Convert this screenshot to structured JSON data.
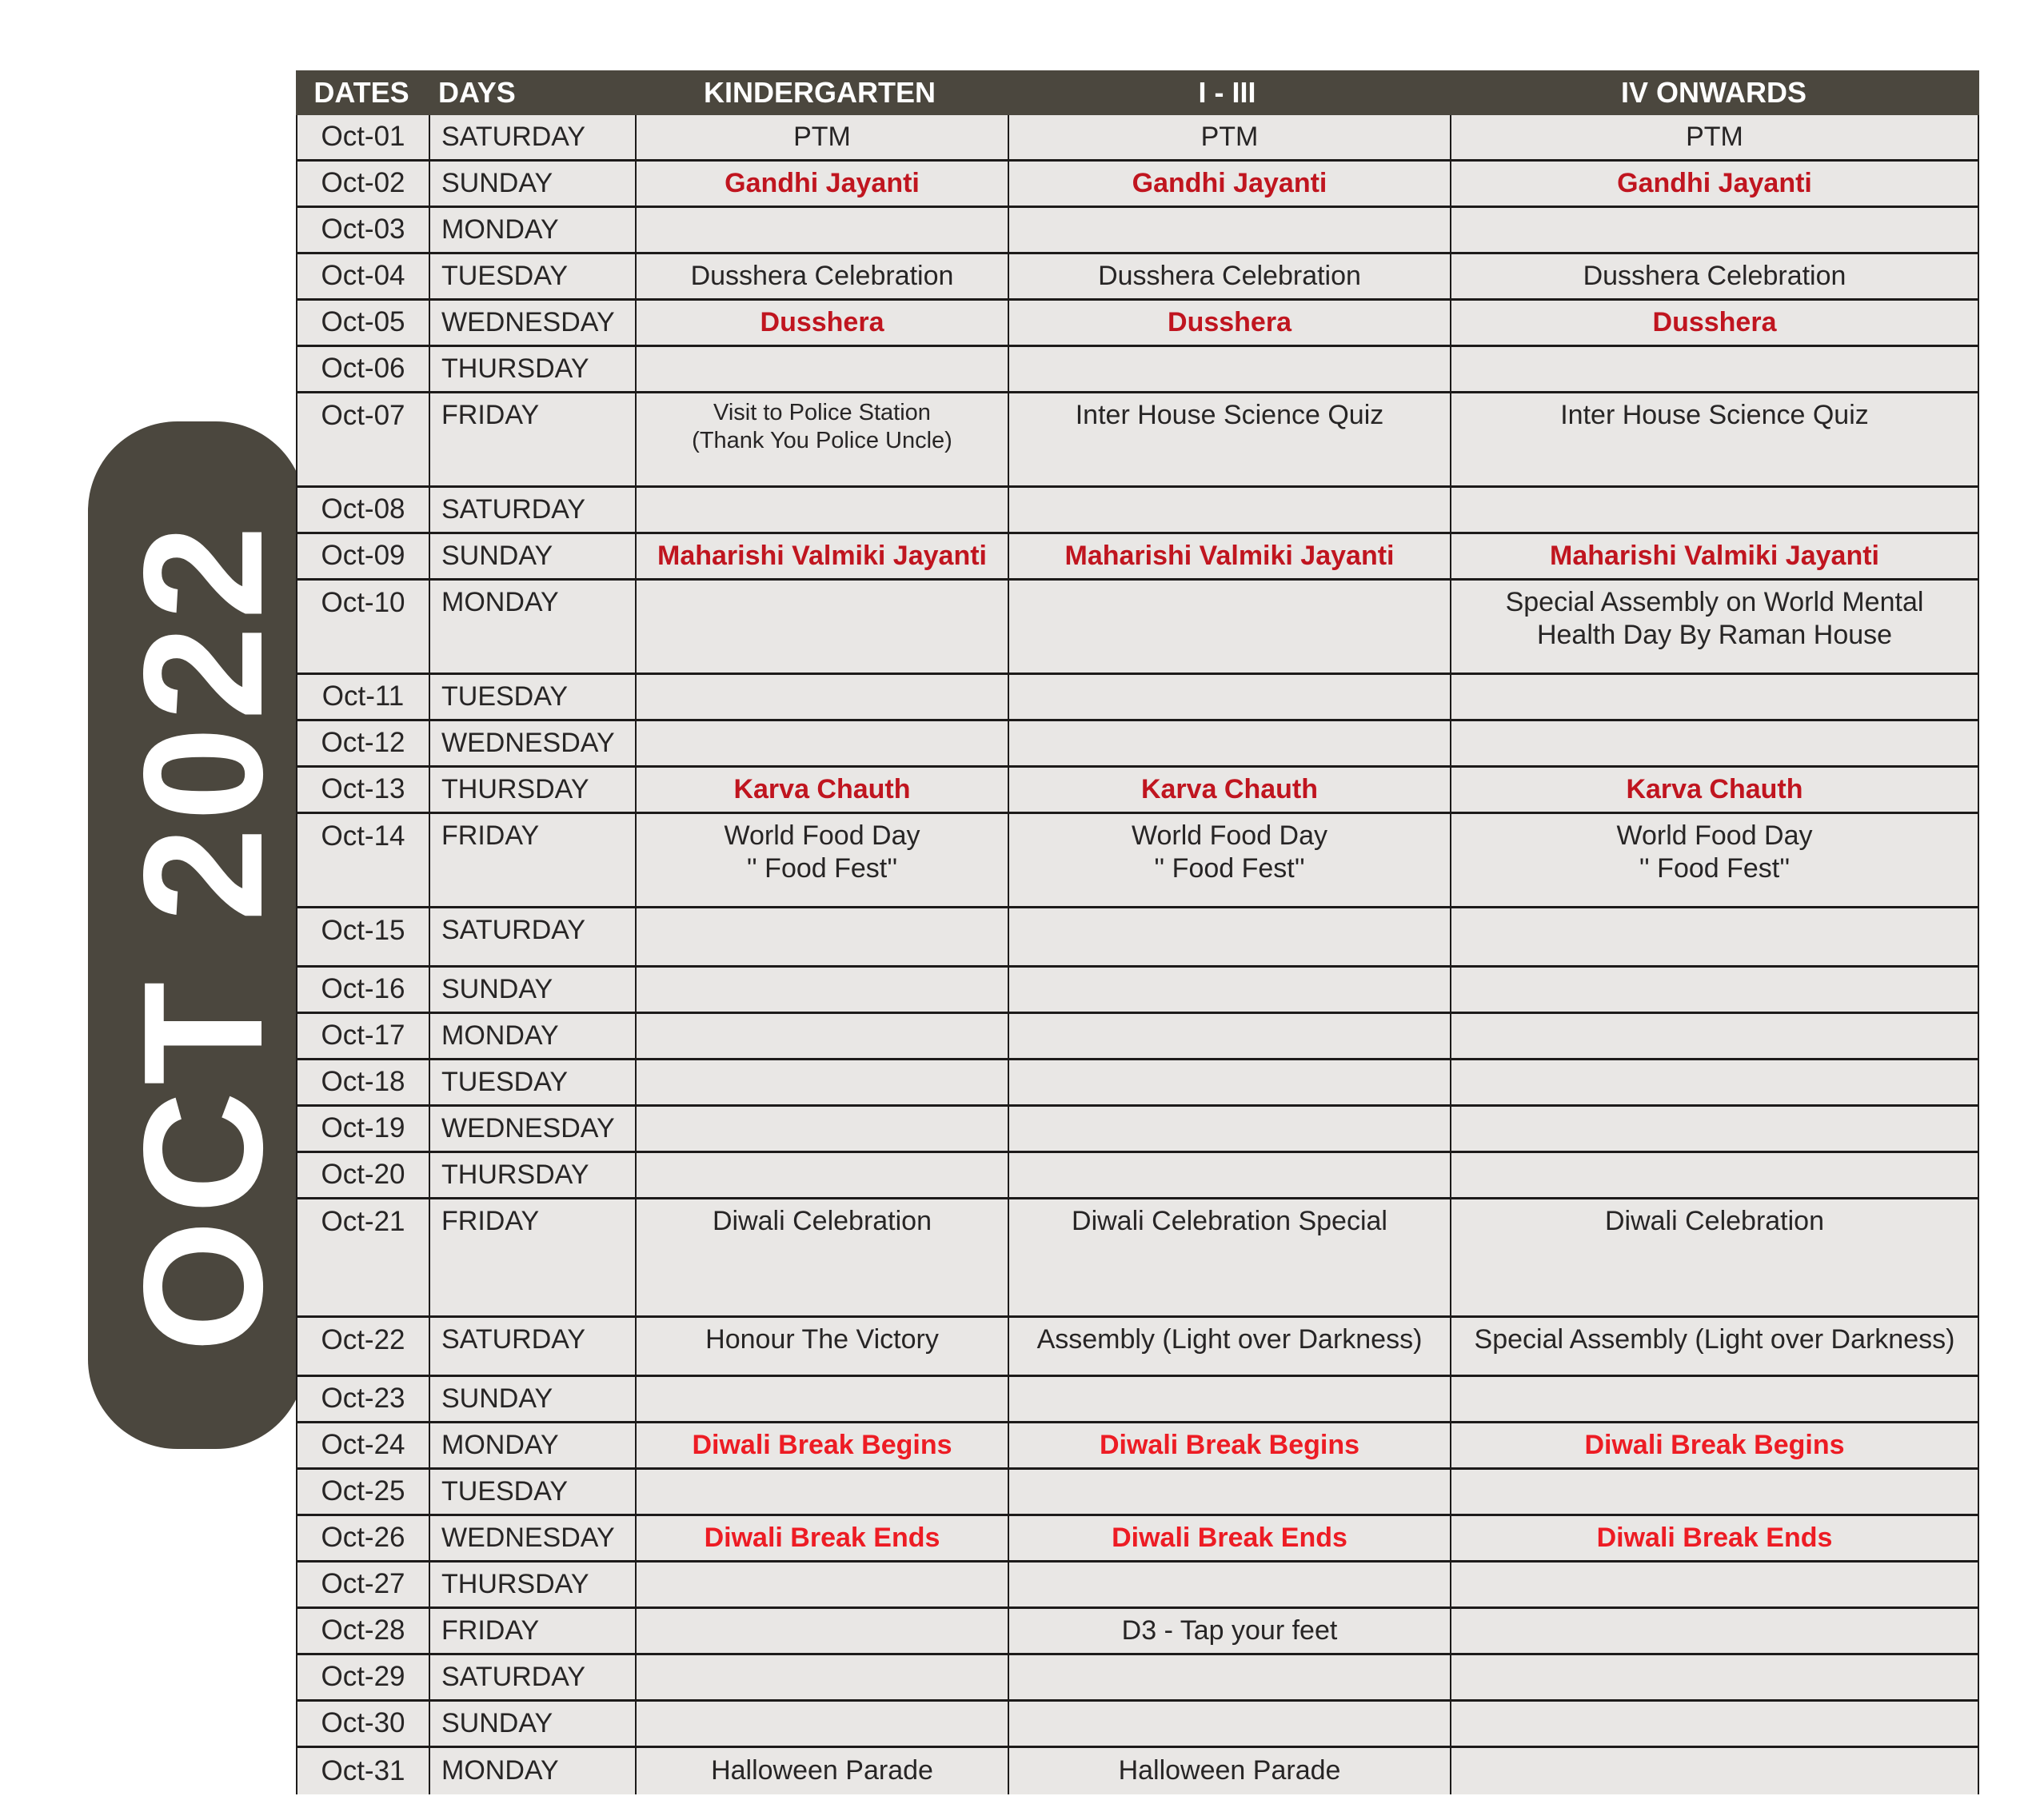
{
  "colors": {
    "header_bg": "#4B473E",
    "row_bg": "#E9E7E5",
    "border": "#1D1B1A",
    "text": "#272525",
    "holiday_crimson": "#C0151F",
    "break_red": "#ED1C24",
    "header_text": "#FFFFFF"
  },
  "sidebar": {
    "label": "OCT 2022"
  },
  "table": {
    "headers": [
      {
        "label": "DATES"
      },
      {
        "label": "DAYS"
      },
      {
        "label": "KINDERGARTEN"
      },
      {
        "label": "I - III"
      },
      {
        "label": "IV ONWARDS"
      }
    ],
    "rows": [
      {
        "date": "Oct-01",
        "day": "SATURDAY",
        "height": "normal",
        "cells": [
          {
            "text": "PTM"
          },
          {
            "text": "PTM"
          },
          {
            "text": "PTM"
          }
        ]
      },
      {
        "date": "Oct-02",
        "day": "SUNDAY",
        "height": "normal",
        "cells": [
          {
            "text": "Gandhi Jayanti",
            "variant": "crimson"
          },
          {
            "text": "Gandhi Jayanti",
            "variant": "crimson"
          },
          {
            "text": "Gandhi Jayanti",
            "variant": "crimson"
          }
        ]
      },
      {
        "date": "Oct-03",
        "day": "MONDAY",
        "height": "normal",
        "cells": [
          {
            "text": ""
          },
          {
            "text": ""
          },
          {
            "text": ""
          }
        ]
      },
      {
        "date": "Oct-04",
        "day": "TUESDAY",
        "height": "normal",
        "cells": [
          {
            "text": "Dusshera Celebration"
          },
          {
            "text": "Dusshera Celebration"
          },
          {
            "text": "Dusshera Celebration"
          }
        ]
      },
      {
        "date": "Oct-05",
        "day": "WEDNESDAY",
        "height": "normal",
        "cells": [
          {
            "text": "Dusshera",
            "variant": "crimson"
          },
          {
            "text": "Dusshera",
            "variant": "crimson"
          },
          {
            "text": "Dusshera",
            "variant": "crimson"
          }
        ]
      },
      {
        "date": "Oct-06",
        "day": "THURSDAY",
        "height": "normal",
        "cells": [
          {
            "text": ""
          },
          {
            "text": ""
          },
          {
            "text": ""
          }
        ]
      },
      {
        "date": "Oct-07",
        "day": "FRIDAY",
        "height": "tall",
        "cells": [
          {
            "text": "Visit to Police Station\n(Thank You Police Uncle)",
            "small": true
          },
          {
            "text": "Inter House Science Quiz"
          },
          {
            "text": "Inter House Science Quiz"
          }
        ]
      },
      {
        "date": "Oct-08",
        "day": "SATURDAY",
        "height": "normal",
        "cells": [
          {
            "text": ""
          },
          {
            "text": ""
          },
          {
            "text": ""
          }
        ]
      },
      {
        "date": "Oct-09",
        "day": "SUNDAY",
        "height": "normal",
        "cells": [
          {
            "text": "Maharishi Valmiki Jayanti",
            "variant": "crimson"
          },
          {
            "text": "Maharishi Valmiki Jayanti",
            "variant": "crimson"
          },
          {
            "text": "Maharishi Valmiki Jayanti",
            "variant": "crimson"
          }
        ]
      },
      {
        "date": "Oct-10",
        "day": "MONDAY",
        "height": "tall",
        "cells": [
          {
            "text": ""
          },
          {
            "text": ""
          },
          {
            "text": "Special Assembly on World Mental\nHealth Day By Raman House"
          }
        ]
      },
      {
        "date": "Oct-11",
        "day": "TUESDAY",
        "height": "normal",
        "cells": [
          {
            "text": ""
          },
          {
            "text": ""
          },
          {
            "text": ""
          }
        ]
      },
      {
        "date": "Oct-12",
        "day": "WEDNESDAY",
        "height": "normal",
        "cells": [
          {
            "text": ""
          },
          {
            "text": ""
          },
          {
            "text": ""
          }
        ]
      },
      {
        "date": "Oct-13",
        "day": "THURSDAY",
        "height": "normal",
        "cells": [
          {
            "text": "Karva Chauth",
            "variant": "crimson"
          },
          {
            "text": "Karva Chauth",
            "variant": "crimson"
          },
          {
            "text": "Karva Chauth",
            "variant": "crimson"
          }
        ]
      },
      {
        "date": "Oct-14",
        "day": "FRIDAY",
        "height": "tall",
        "cells": [
          {
            "text": "World Food Day\n'' Food Fest''"
          },
          {
            "text": "World Food Day\n'' Food Fest''"
          },
          {
            "text": "World Food Day\n'' Food Fest''"
          }
        ]
      },
      {
        "date": "Oct-15",
        "day": "SATURDAY",
        "height": "med",
        "cells": [
          {
            "text": ""
          },
          {
            "text": ""
          },
          {
            "text": ""
          }
        ]
      },
      {
        "date": "Oct-16",
        "day": "SUNDAY",
        "height": "normal",
        "cells": [
          {
            "text": ""
          },
          {
            "text": ""
          },
          {
            "text": ""
          }
        ]
      },
      {
        "date": "Oct-17",
        "day": "MONDAY",
        "height": "normal",
        "cells": [
          {
            "text": ""
          },
          {
            "text": ""
          },
          {
            "text": ""
          }
        ]
      },
      {
        "date": "Oct-18",
        "day": "TUESDAY",
        "height": "normal",
        "cells": [
          {
            "text": ""
          },
          {
            "text": ""
          },
          {
            "text": ""
          }
        ]
      },
      {
        "date": "Oct-19",
        "day": "WEDNESDAY",
        "height": "normal",
        "cells": [
          {
            "text": ""
          },
          {
            "text": ""
          },
          {
            "text": ""
          }
        ]
      },
      {
        "date": "Oct-20",
        "day": "THURSDAY",
        "height": "normal",
        "cells": [
          {
            "text": ""
          },
          {
            "text": ""
          },
          {
            "text": ""
          }
        ]
      },
      {
        "date": "Oct-21",
        "day": "FRIDAY",
        "height": "xtall",
        "cells": [
          {
            "text": "Diwali Celebration"
          },
          {
            "text": "Diwali Celebration Special"
          },
          {
            "text": "Diwali Celebration"
          }
        ]
      },
      {
        "date": "Oct-22",
        "day": "SATURDAY",
        "height": "med",
        "cells": [
          {
            "text": "Honour The Victory"
          },
          {
            "text": "Assembly (Light over Darkness)"
          },
          {
            "text": "Special Assembly (Light over Darkness)"
          }
        ]
      },
      {
        "date": "Oct-23",
        "day": "SUNDAY",
        "height": "normal",
        "cells": [
          {
            "text": ""
          },
          {
            "text": ""
          },
          {
            "text": ""
          }
        ]
      },
      {
        "date": "Oct-24",
        "day": "MONDAY",
        "height": "normal",
        "cells": [
          {
            "text": "Diwali Break Begins",
            "variant": "red"
          },
          {
            "text": "Diwali Break Begins",
            "variant": "red"
          },
          {
            "text": "Diwali Break Begins",
            "variant": "red"
          }
        ]
      },
      {
        "date": "Oct-25",
        "day": "TUESDAY",
        "height": "normal",
        "cells": [
          {
            "text": ""
          },
          {
            "text": ""
          },
          {
            "text": ""
          }
        ]
      },
      {
        "date": "Oct-26",
        "day": "WEDNESDAY",
        "height": "normal",
        "cells": [
          {
            "text": "Diwali Break Ends",
            "variant": "red"
          },
          {
            "text": "Diwali Break Ends",
            "variant": "red"
          },
          {
            "text": "Diwali Break Ends",
            "variant": "red"
          }
        ]
      },
      {
        "date": "Oct-27",
        "day": "THURSDAY",
        "height": "normal",
        "cells": [
          {
            "text": ""
          },
          {
            "text": ""
          },
          {
            "text": ""
          }
        ]
      },
      {
        "date": "Oct-28",
        "day": "FRIDAY",
        "height": "normal",
        "cells": [
          {
            "text": ""
          },
          {
            "text": "D3 - Tap your feet"
          },
          {
            "text": ""
          }
        ]
      },
      {
        "date": "Oct-29",
        "day": "SATURDAY",
        "height": "normal",
        "cells": [
          {
            "text": ""
          },
          {
            "text": ""
          },
          {
            "text": ""
          }
        ]
      },
      {
        "date": "Oct-30",
        "day": "SUNDAY",
        "height": "normal",
        "cells": [
          {
            "text": ""
          },
          {
            "text": ""
          },
          {
            "text": ""
          }
        ]
      },
      {
        "date": "Oct-31",
        "day": "MONDAY",
        "height": "normal",
        "cells": [
          {
            "text": "Halloween Parade"
          },
          {
            "text": "Halloween Parade"
          },
          {
            "text": ""
          }
        ]
      }
    ]
  }
}
